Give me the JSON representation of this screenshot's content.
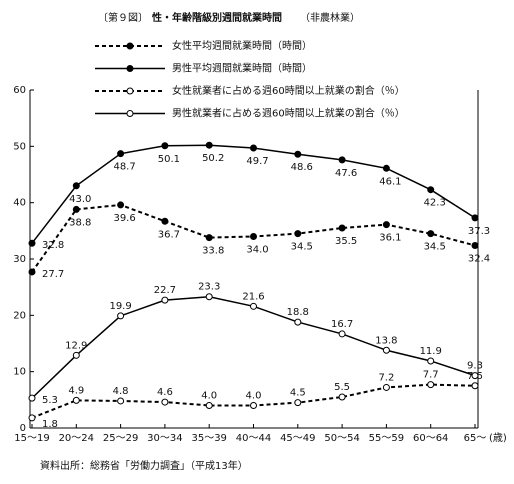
{
  "chart_data": {
    "type": "line",
    "figure_label": "〔第９図〕",
    "title": "性・年齢階級別週間就業時間",
    "subtitle": "（非農林業）",
    "x_label": "(歳)",
    "source": "資料出所：総務省「労働力調査」（平成13年）",
    "categories": [
      "15～19",
      "20～24",
      "25～29",
      "30～34",
      "35～39",
      "40～44",
      "45～49",
      "50～54",
      "55～59",
      "60～64",
      "65～"
    ],
    "ylim": [
      0,
      60
    ],
    "yticks": [
      0,
      10,
      20,
      30,
      40,
      50,
      60
    ],
    "grid": false,
    "series": [
      {
        "name": "女性平均週間就業時間（時間）",
        "color": "#000000",
        "dashed": true,
        "filled": true,
        "values": [
          27.7,
          38.8,
          39.6,
          36.7,
          33.8,
          34.0,
          34.5,
          35.5,
          36.1,
          34.5,
          32.4
        ],
        "value_labels": [
          "27.7",
          "38.8",
          "39.6",
          "36.7",
          "33.8",
          "34.0",
          "34.5",
          "35.5",
          "36.1",
          "34.5",
          "32.4"
        ]
      },
      {
        "name": "男性平均週間就業時間（時間）",
        "color": "#000000",
        "dashed": false,
        "filled": true,
        "values": [
          32.8,
          43.0,
          48.7,
          50.1,
          50.2,
          49.7,
          48.6,
          47.6,
          46.1,
          42.3,
          37.3
        ],
        "value_labels": [
          "32.8",
          "43.0",
          "48.7",
          "50.1",
          "50.2",
          "49.7",
          "48.6",
          "47.6",
          "46.1",
          "42.3",
          "37.3"
        ]
      },
      {
        "name": "女性就業者に占める週60時間以上就業の割合（％）",
        "color": "#000000",
        "dashed": true,
        "filled": false,
        "values": [
          1.8,
          4.9,
          4.8,
          4.6,
          4.0,
          4.0,
          4.5,
          5.5,
          7.2,
          7.7,
          7.5
        ],
        "value_labels": [
          "1.8",
          "4.9",
          "4.8",
          "4.6",
          "4.0",
          "4.0",
          "4.5",
          "5.5",
          "7.2",
          "7.7",
          "7.5"
        ]
      },
      {
        "name": "男性就業者に占める週60時間以上就業の割合（％）",
        "color": "#000000",
        "dashed": false,
        "filled": false,
        "values": [
          5.3,
          12.9,
          19.9,
          22.7,
          23.3,
          21.6,
          18.8,
          16.7,
          13.8,
          11.9,
          9.3
        ],
        "value_labels": [
          "5.3",
          "12.9",
          "19.9",
          "22.7",
          "23.3",
          "21.6",
          "18.8",
          "16.7",
          "13.8",
          "11.9",
          "9.3"
        ]
      }
    ]
  }
}
